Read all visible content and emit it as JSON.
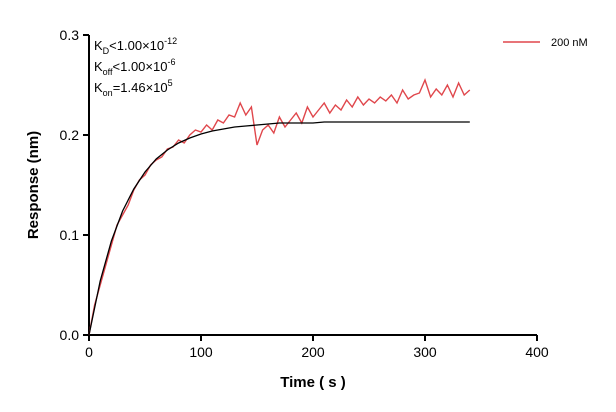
{
  "chart_data": {
    "type": "line",
    "annotations": [
      {
        "symbol": "K",
        "sub": "D",
        "relation": "<",
        "mantissa": "1.00×10",
        "exponent": "-12"
      },
      {
        "symbol": "K",
        "sub": "off",
        "relation": "<",
        "mantissa": "1.00×10",
        "exponent": "-6"
      },
      {
        "symbol": "K",
        "sub": "on",
        "relation": "=",
        "mantissa": "1.46×10",
        "exponent": "5"
      }
    ],
    "x_label": "Time ( s )",
    "y_label": "Response (nm)",
    "xlim": [
      0,
      400
    ],
    "xticks": [
      0,
      100,
      200,
      300,
      400
    ],
    "ylim": [
      0,
      0.3
    ],
    "yticks": [
      {
        "value": 0,
        "label": "0.0"
      },
      0.1,
      0.2,
      0.3
    ],
    "legend": "top-right",
    "series": [
      {
        "name": "200 nM",
        "color": "#e0474c",
        "x": [
          0,
          5,
          10,
          15,
          20,
          25,
          30,
          35,
          40,
          45,
          50,
          55,
          60,
          65,
          70,
          75,
          80,
          85,
          90,
          95,
          100,
          105,
          110,
          115,
          120,
          125,
          130,
          135,
          140,
          145,
          150,
          155,
          160,
          165,
          170,
          175,
          180,
          185,
          190,
          195,
          200,
          205,
          210,
          215,
          220,
          225,
          230,
          235,
          240,
          245,
          250,
          255,
          260,
          265,
          270,
          275,
          280,
          285,
          290,
          295,
          300,
          305,
          310,
          315,
          320,
          325,
          330,
          335,
          340
        ],
        "values": [
          0.0,
          0.03,
          0.05,
          0.07,
          0.09,
          0.11,
          0.12,
          0.13,
          0.145,
          0.155,
          0.16,
          0.17,
          0.175,
          0.178,
          0.186,
          0.188,
          0.195,
          0.192,
          0.2,
          0.205,
          0.203,
          0.21,
          0.205,
          0.215,
          0.212,
          0.22,
          0.218,
          0.232,
          0.22,
          0.228,
          0.19,
          0.205,
          0.21,
          0.202,
          0.218,
          0.208,
          0.215,
          0.222,
          0.212,
          0.228,
          0.218,
          0.225,
          0.232,
          0.222,
          0.23,
          0.225,
          0.235,
          0.228,
          0.238,
          0.23,
          0.236,
          0.232,
          0.238,
          0.234,
          0.24,
          0.232,
          0.245,
          0.236,
          0.24,
          0.242,
          0.255,
          0.238,
          0.246,
          0.24,
          0.25,
          0.238,
          0.252,
          0.24,
          0.245
        ]
      },
      {
        "color": "#000000",
        "x": [
          0,
          10,
          20,
          30,
          40,
          50,
          60,
          70,
          80,
          90,
          100,
          110,
          120,
          130,
          140,
          150,
          160,
          170,
          180,
          190,
          200,
          210,
          220,
          230,
          240,
          250,
          260,
          270,
          280,
          290,
          300,
          310,
          320,
          330,
          340
        ],
        "values": [
          0,
          0.054,
          0.094,
          0.124,
          0.146,
          0.163,
          0.176,
          0.185,
          0.192,
          0.197,
          0.201,
          0.204,
          0.206,
          0.208,
          0.209,
          0.21,
          0.211,
          0.212,
          0.212,
          0.212,
          0.212,
          0.213,
          0.213,
          0.213,
          0.213,
          0.213,
          0.213,
          0.213,
          0.213,
          0.213,
          0.213,
          0.213,
          0.213,
          0.213,
          0.213
        ]
      }
    ]
  }
}
